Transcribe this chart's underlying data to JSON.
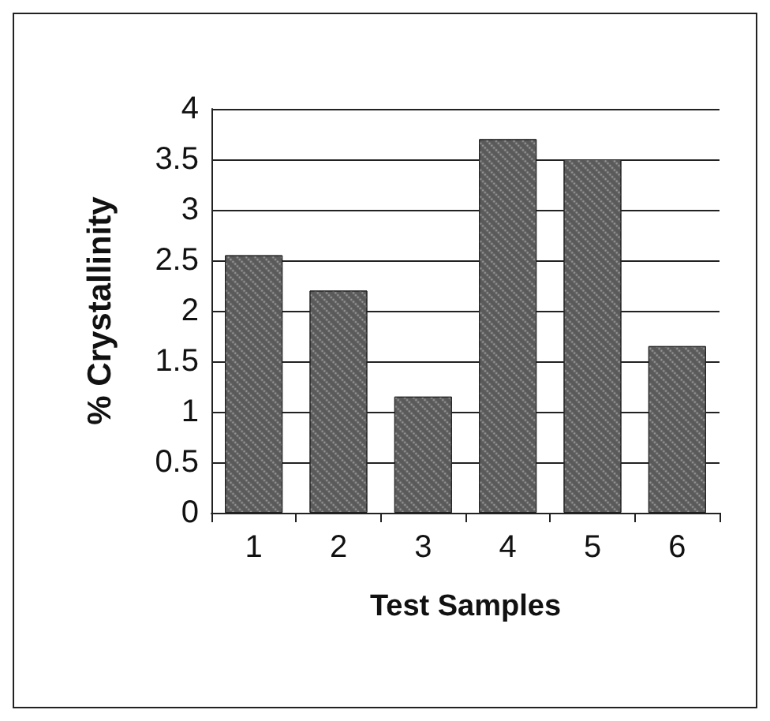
{
  "chart_data": {
    "type": "bar",
    "xlabel": "Test Samples",
    "ylabel": "% Crystallinity",
    "categories": [
      "1",
      "2",
      "3",
      "4",
      "5",
      "6"
    ],
    "values": [
      2.55,
      2.2,
      1.15,
      3.7,
      3.5,
      1.65
    ],
    "color": "#5a5a5a",
    "ylim": [
      0,
      4
    ],
    "yticks": [
      0,
      0.5,
      1,
      1.5,
      2,
      2.5,
      3,
      3.5,
      4
    ],
    "grid": "y"
  }
}
